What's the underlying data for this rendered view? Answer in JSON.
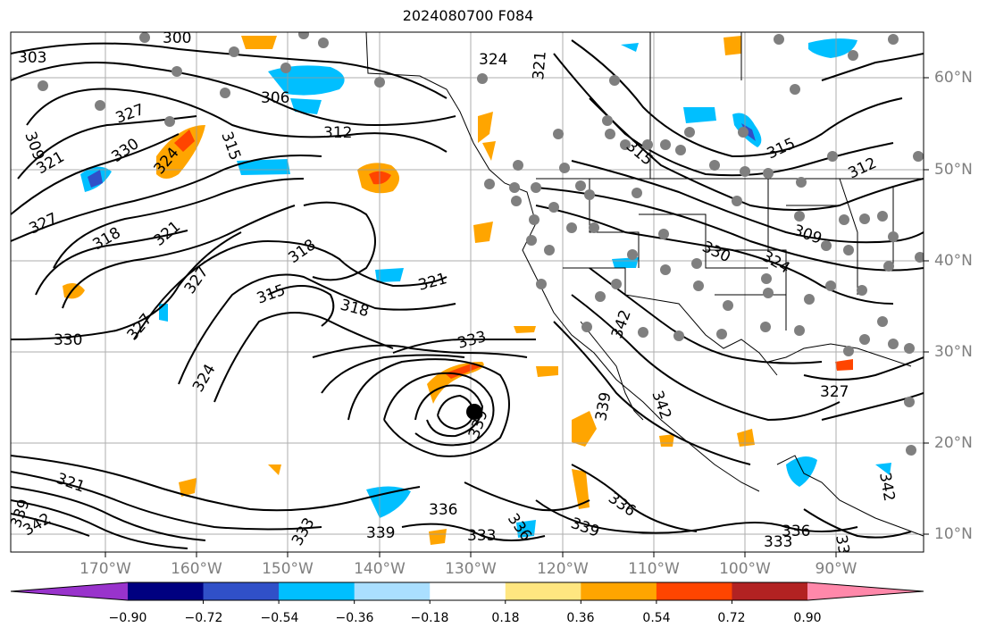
{
  "title": "2024080700 F084",
  "colors": {
    "land_border": "#000000",
    "contour": "#000000",
    "grid": "#9a9a9a",
    "station_dot": "#7f7f7f",
    "tick_label": "#7f7f7f"
  },
  "latitude_labels": [
    "60°N",
    "50°N",
    "40°N",
    "30°N",
    "20°N",
    "10°N"
  ],
  "longitude_labels": [
    "170°W",
    "160°W",
    "150°W",
    "140°W",
    "130°W",
    "120°W",
    "110°W",
    "100°W",
    "90°W"
  ],
  "colorbar": {
    "colors": [
      "#9933cc",
      "#000080",
      "#3050c8",
      "#00bfff",
      "#aadfff",
      "#ffffff",
      "#ffe680",
      "#ffa500",
      "#ff4500",
      "#b22222",
      "#ff88aa"
    ],
    "labels": [
      "−0.90",
      "−0.72",
      "−0.54",
      "−0.36",
      "−0.18",
      "0.18",
      "0.36",
      "0.54",
      "0.72",
      "0.90"
    ]
  },
  "contour_labels": [
    "303",
    "300",
    "324",
    "321",
    "306",
    "327",
    "315",
    "309",
    "330",
    "324",
    "312",
    "321",
    "327",
    "318",
    "321",
    "318",
    "315",
    "327",
    "321",
    "330",
    "318",
    "327",
    "324",
    "333",
    "339",
    "339",
    "342",
    "336",
    "321",
    "339",
    "342",
    "336",
    "333",
    "339",
    "336",
    "339",
    "333",
    "342",
    "330",
    "324",
    "315",
    "315",
    "312",
    "309",
    "327",
    "333",
    "336",
    "342",
    "33"
  ],
  "storm_marker": "hurricane-center"
}
